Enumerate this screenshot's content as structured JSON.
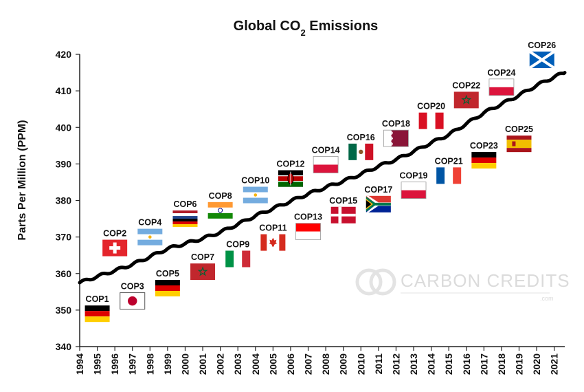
{
  "chart_data": {
    "type": "line",
    "title": "Global CO",
    "title_sub": "2",
    "title_suffix": " Emissions",
    "ylabel": "Parts Per Million (PPM)",
    "xlabel": "",
    "ylim": [
      340,
      420
    ],
    "yticks": [
      340,
      350,
      360,
      370,
      380,
      390,
      400,
      410,
      420
    ],
    "xticks": [
      "1994",
      "1995",
      "1996",
      "1997",
      "1998",
      "1999",
      "2000",
      "2001",
      "2002",
      "2003",
      "2004",
      "2005",
      "2006",
      "2007",
      "2008",
      "2009",
      "2010",
      "2011",
      "2012",
      "2013",
      "2014",
      "2015",
      "2016",
      "2017",
      "2018",
      "2019",
      "2020",
      "2021"
    ],
    "grid": false,
    "series": [
      {
        "values": [
          {
            "x": 1994.0,
            "y": 357.5
          },
          {
            "x": 1995.0,
            "y": 359.2
          },
          {
            "x": 1996.0,
            "y": 360.8
          },
          {
            "x": 1997.0,
            "y": 362.5
          },
          {
            "x": 1998.0,
            "y": 364.6
          },
          {
            "x": 1999.0,
            "y": 366.8
          },
          {
            "x": 2000.0,
            "y": 368.2
          },
          {
            "x": 2001.0,
            "y": 369.6
          },
          {
            "x": 2002.0,
            "y": 371.3
          },
          {
            "x": 2003.0,
            "y": 373.5
          },
          {
            "x": 2004.0,
            "y": 375.8
          },
          {
            "x": 2005.0,
            "y": 377.8
          },
          {
            "x": 2006.0,
            "y": 379.8
          },
          {
            "x": 2007.0,
            "y": 381.8
          },
          {
            "x": 2008.0,
            "y": 383.6
          },
          {
            "x": 2009.0,
            "y": 385.3
          },
          {
            "x": 2010.0,
            "y": 387.2
          },
          {
            "x": 2011.0,
            "y": 389.4
          },
          {
            "x": 2012.0,
            "y": 391.2
          },
          {
            "x": 2013.0,
            "y": 393.4
          },
          {
            "x": 2014.0,
            "y": 395.8
          },
          {
            "x": 2015.0,
            "y": 398.0
          },
          {
            "x": 2016.0,
            "y": 401.0
          },
          {
            "x": 2017.0,
            "y": 404.0
          },
          {
            "x": 2018.0,
            "y": 406.4
          },
          {
            "x": 2019.0,
            "y": 408.8
          },
          {
            "x": 2020.0,
            "y": 411.5
          },
          {
            "x": 2021.0,
            "y": 413.8
          },
          {
            "x": 2021.6,
            "y": 415.0
          }
        ]
      }
    ],
    "annotations": [
      {
        "label": "COP1",
        "year": 1995.0,
        "ppm": 349.0,
        "flag": "germany"
      },
      {
        "label": "COP2",
        "year": 1996.0,
        "ppm": 367.0,
        "flag": "switzerland"
      },
      {
        "label": "COP3",
        "year": 1997.0,
        "ppm": 352.5,
        "flag": "japan"
      },
      {
        "label": "COP4",
        "year": 1998.0,
        "ppm": 370.0,
        "flag": "argentina"
      },
      {
        "label": "COP5",
        "year": 1999.0,
        "ppm": 356.0,
        "flag": "germany"
      },
      {
        "label": "COP6",
        "year": 2000.0,
        "ppm": 375.0,
        "flag": "netherlands-germany"
      },
      {
        "label": "COP7",
        "year": 2001.0,
        "ppm": 360.5,
        "flag": "morocco"
      },
      {
        "label": "COP8",
        "year": 2002.0,
        "ppm": 377.3,
        "flag": "india"
      },
      {
        "label": "COP9",
        "year": 2003.0,
        "ppm": 364.0,
        "flag": "italy"
      },
      {
        "label": "COP10",
        "year": 2004.0,
        "ppm": 381.5,
        "flag": "argentina"
      },
      {
        "label": "COP11",
        "year": 2005.0,
        "ppm": 368.5,
        "flag": "canada"
      },
      {
        "label": "COP12",
        "year": 2006.0,
        "ppm": 386.0,
        "flag": "kenya"
      },
      {
        "label": "COP13",
        "year": 2007.0,
        "ppm": 371.5,
        "flag": "indonesia"
      },
      {
        "label": "COP14",
        "year": 2008.0,
        "ppm": 389.8,
        "flag": "poland"
      },
      {
        "label": "COP15",
        "year": 2009.0,
        "ppm": 376.0,
        "flag": "denmark"
      },
      {
        "label": "COP16",
        "year": 2010.0,
        "ppm": 393.3,
        "flag": "mexico"
      },
      {
        "label": "COP17",
        "year": 2011.0,
        "ppm": 379.0,
        "flag": "south-africa"
      },
      {
        "label": "COP18",
        "year": 2012.0,
        "ppm": 397.0,
        "flag": "qatar"
      },
      {
        "label": "COP19",
        "year": 2013.0,
        "ppm": 382.8,
        "flag": "poland"
      },
      {
        "label": "COP20",
        "year": 2014.0,
        "ppm": 401.8,
        "flag": "peru"
      },
      {
        "label": "COP21",
        "year": 2015.0,
        "ppm": 386.8,
        "flag": "france"
      },
      {
        "label": "COP22",
        "year": 2016.0,
        "ppm": 407.5,
        "flag": "morocco"
      },
      {
        "label": "COP23",
        "year": 2017.0,
        "ppm": 391.0,
        "flag": "germany"
      },
      {
        "label": "COP24",
        "year": 2018.0,
        "ppm": 411.0,
        "flag": "poland"
      },
      {
        "label": "COP25",
        "year": 2019.0,
        "ppm": 395.5,
        "flag": "spain"
      },
      {
        "label": "COP26",
        "year": 2020.3,
        "ppm": 418.5,
        "flag": "scotland"
      }
    ],
    "line_color": "#000000"
  },
  "watermark": {
    "text": "CARBON CREDITS",
    "sub": ".com"
  }
}
